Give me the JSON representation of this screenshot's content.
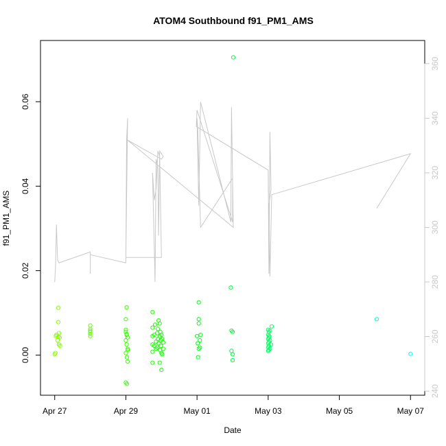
{
  "chart_data": {
    "type": "scatter",
    "title": "ATOM4 Southbound f91_PM1_AMS",
    "xlabel": "Date",
    "ylabel": "f91_PM1_AMS",
    "x_unit": "days",
    "x_ticks": [
      {
        "value": 0,
        "label": "Apr 27"
      },
      {
        "value": 2,
        "label": "Apr 29"
      },
      {
        "value": 4,
        "label": "May 01"
      },
      {
        "value": 6,
        "label": "May 03"
      },
      {
        "value": 8,
        "label": "May 05"
      },
      {
        "value": 10,
        "label": "May 07"
      }
    ],
    "xlim": [
      -0.4,
      10.4
    ],
    "ylim": [
      -0.0095,
      0.0745
    ],
    "y_ticks": [
      0.0,
      0.02,
      0.04,
      0.06
    ],
    "y_tick_labels": [
      "0.00",
      "0.02",
      "0.04",
      "0.06"
    ],
    "y2_ticks": [
      240,
      260,
      280,
      300,
      320,
      340,
      360
    ],
    "y2_tick_labels": [
      "240",
      "260",
      "280",
      "300",
      "320",
      "340",
      "360"
    ],
    "y2lim": [
      238.5,
      368.5
    ],
    "y2_color": "#c8c8c8",
    "grid": false,
    "legend": "none",
    "series": [
      {
        "kind": "points",
        "color_scale": "green-to-cyan by time",
        "points": [
          [
            0.0,
            0.0002
          ],
          [
            0.02,
            0.0005
          ],
          [
            0.05,
            0.0048
          ],
          [
            0.08,
            0.0035
          ],
          [
            0.1,
            0.0043
          ],
          [
            0.1,
            0.0078
          ],
          [
            0.1,
            0.0112
          ],
          [
            0.12,
            0.0025
          ],
          [
            0.12,
            0.0052
          ],
          [
            0.14,
            0.0042
          ],
          [
            0.15,
            0.0022
          ],
          [
            0.03,
            0.0045
          ],
          [
            1.0,
            0.0045
          ],
          [
            1.0,
            0.0055
          ],
          [
            1.0,
            0.0062
          ],
          [
            1.0,
            0.007
          ],
          [
            1.0,
            0.005
          ],
          [
            1.0,
            0.0058
          ],
          [
            2.0,
            0.0085
          ],
          [
            2.02,
            0.0113
          ],
          [
            2.0,
            0.006
          ],
          [
            2.02,
            0.005
          ],
          [
            2.0,
            0.0035
          ],
          [
            2.02,
            0.0025
          ],
          [
            2.05,
            0.0012
          ],
          [
            2.0,
            0.0005
          ],
          [
            2.03,
            -0.0005
          ],
          [
            2.05,
            -0.0015
          ],
          [
            2.0,
            -0.0065
          ],
          [
            2.03,
            -0.0068
          ],
          [
            2.05,
            0.0042
          ],
          [
            2.0,
            0.0055
          ],
          [
            2.02,
            0.0048
          ],
          [
            2.05,
            0.0015
          ],
          [
            2.75,
            0.0102
          ],
          [
            2.75,
            0.0065
          ],
          [
            2.75,
            0.0045
          ],
          [
            2.75,
            0.0025
          ],
          [
            2.75,
            0.0008
          ],
          [
            2.75,
            -0.0018
          ],
          [
            2.8,
            0.0022
          ],
          [
            2.8,
            0.0048
          ],
          [
            2.82,
            0.0072
          ],
          [
            2.85,
            0.0032
          ],
          [
            2.85,
            0.0015
          ],
          [
            2.88,
            0.0052
          ],
          [
            2.88,
            0.0018
          ],
          [
            2.9,
            0.0062
          ],
          [
            2.9,
            0.0038
          ],
          [
            2.92,
            0.0082
          ],
          [
            2.92,
            0.0028
          ],
          [
            2.95,
            0.0075
          ],
          [
            2.95,
            0.0045
          ],
          [
            2.96,
            0.0012
          ],
          [
            2.97,
            0.0055
          ],
          [
            2.98,
            0.0035
          ],
          [
            2.98,
            0.0022
          ],
          [
            3.0,
            0.0048
          ],
          [
            3.0,
            0.0005
          ],
          [
            2.95,
            -0.0018
          ],
          [
            3.0,
            -0.0035
          ],
          [
            3.02,
            0.0002
          ],
          [
            3.02,
            0.0038
          ],
          [
            3.05,
            0.0015
          ],
          [
            3.05,
            0.003
          ],
          [
            4.0,
            0.0045
          ],
          [
            4.02,
            0.0028
          ],
          [
            4.05,
            0.0015
          ],
          [
            4.05,
            0.0085
          ],
          [
            4.05,
            0.0075
          ],
          [
            4.08,
            0.0035
          ],
          [
            4.08,
            0.0018
          ],
          [
            4.1,
            0.0048
          ],
          [
            4.05,
            0.0125
          ],
          [
            4.03,
            -0.0005
          ],
          [
            4.95,
            0.016
          ],
          [
            4.97,
            0.0058
          ],
          [
            5.0,
            0.0055
          ],
          [
            4.97,
            0.001
          ],
          [
            5.0,
            0.0002
          ],
          [
            5.0,
            -0.0012
          ],
          [
            5.02,
            0.0705
          ],
          [
            6.0,
            0.006
          ],
          [
            6.0,
            0.0048
          ],
          [
            6.0,
            0.0038
          ],
          [
            6.0,
            0.0028
          ],
          [
            6.0,
            0.0018
          ],
          [
            6.0,
            0.001
          ],
          [
            6.02,
            0.0055
          ],
          [
            6.02,
            0.0042
          ],
          [
            6.02,
            0.0032
          ],
          [
            6.02,
            0.0022
          ],
          [
            6.02,
            0.0012
          ],
          [
            6.05,
            0.0058
          ],
          [
            6.05,
            0.0035
          ],
          [
            6.05,
            0.0015
          ],
          [
            6.03,
            0.0045
          ],
          [
            6.1,
            0.0068
          ],
          [
            6.08,
            0.0025
          ],
          [
            9.05,
            0.0085
          ],
          [
            10.0,
            0.0003
          ]
        ]
      },
      {
        "kind": "line",
        "axis": "y2",
        "color": "#c8c8c8",
        "points": [
          [
            0.0,
            280
          ],
          [
            0.02,
            285
          ],
          [
            0.05,
            301
          ],
          [
            0.08,
            288
          ],
          [
            0.12,
            287
          ],
          [
            1.0,
            291
          ],
          [
            1.0,
            283
          ],
          [
            1.0,
            290
          ],
          [
            2.0,
            287
          ],
          [
            2.02,
            332
          ],
          [
            2.05,
            340
          ],
          [
            2.0,
            289
          ],
          [
            3.0,
            289
          ],
          [
            2.95,
            326
          ],
          [
            2.9,
            328
          ],
          [
            2.85,
            314
          ],
          [
            2.8,
            310
          ],
          [
            2.75,
            320
          ],
          [
            2.82,
            280
          ],
          [
            2.85,
            325
          ],
          [
            2.9,
            322
          ],
          [
            2.92,
            297
          ],
          [
            2.95,
            328
          ],
          [
            3.05,
            326
          ],
          [
            3.0,
            325
          ],
          [
            2.05,
            332
          ],
          [
            5.02,
            300
          ],
          [
            4.97,
            344
          ],
          [
            4.95,
            302
          ],
          [
            4.1,
            346
          ],
          [
            4.05,
            308
          ],
          [
            4.0,
            340
          ],
          [
            4.02,
            336
          ],
          [
            4.1,
            300
          ],
          [
            5.0,
            318
          ],
          [
            5.0,
            302
          ],
          [
            4.0,
            343
          ],
          [
            3.98,
            337
          ],
          [
            6.0,
            321
          ],
          [
            6.02,
            283
          ],
          [
            6.05,
            335
          ],
          [
            6.08,
            314
          ],
          [
            6.02,
            308
          ],
          [
            6.05,
            282
          ],
          [
            6.1,
            312
          ],
          [
            10.0,
            327
          ],
          [
            9.05,
            307
          ]
        ]
      }
    ]
  }
}
